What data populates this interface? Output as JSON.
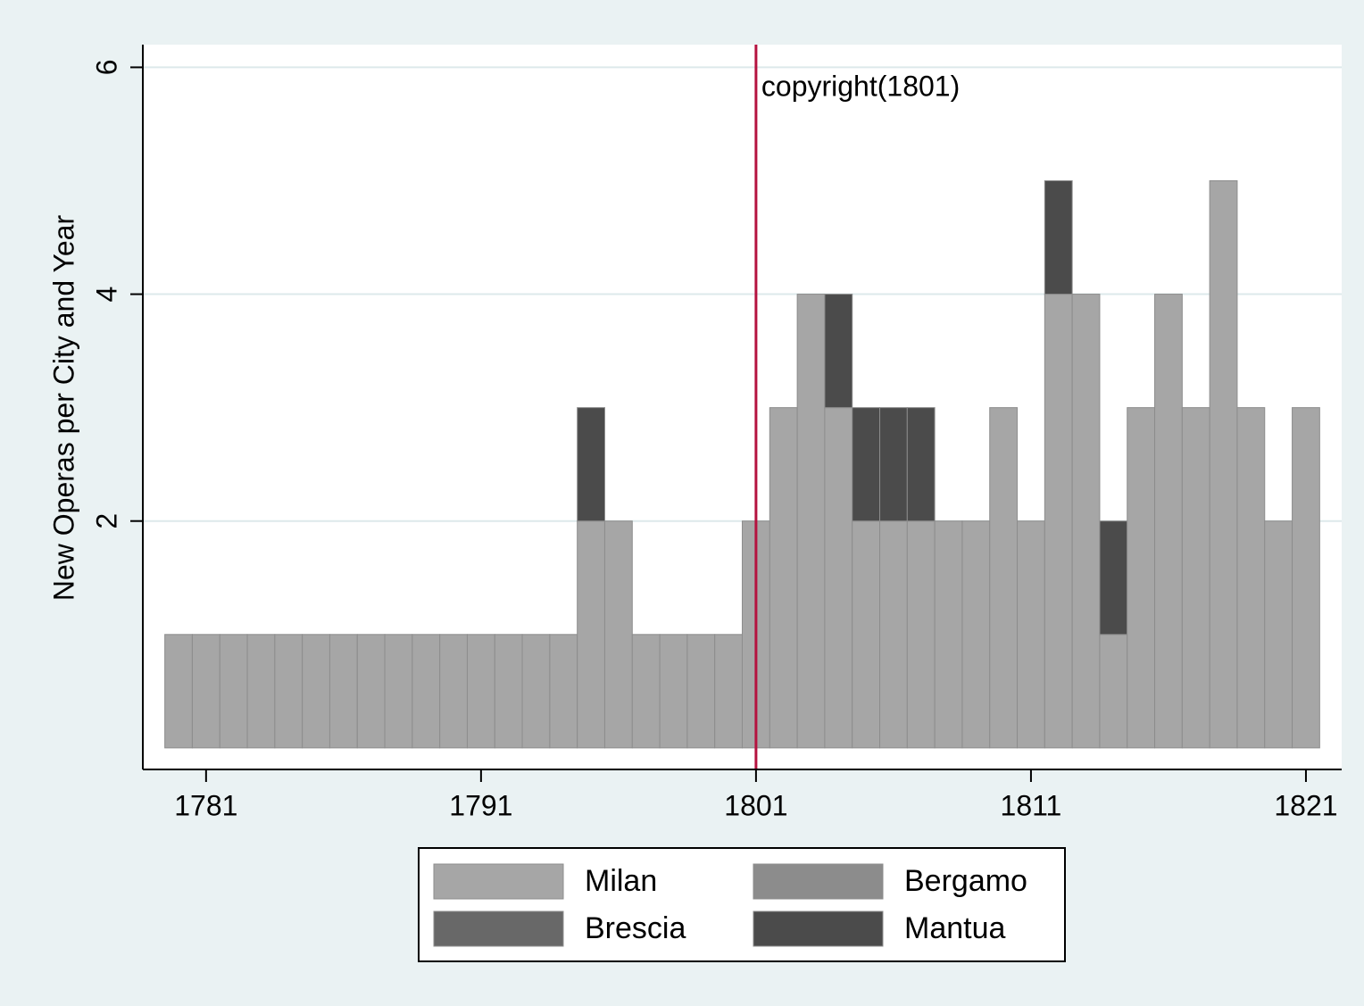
{
  "chart_data": {
    "type": "bar",
    "stacked": true,
    "y_label": "New Operas per City and Year",
    "x": [
      1780,
      1781,
      1782,
      1783,
      1784,
      1785,
      1786,
      1787,
      1788,
      1789,
      1790,
      1791,
      1792,
      1793,
      1794,
      1795,
      1796,
      1797,
      1798,
      1799,
      1800,
      1801,
      1802,
      1803,
      1804,
      1805,
      1806,
      1807,
      1808,
      1809,
      1810,
      1811,
      1812,
      1813,
      1814,
      1815,
      1816,
      1817,
      1818,
      1819,
      1820,
      1821
    ],
    "series": [
      {
        "name": "Milan",
        "color": "#a6a6a6",
        "values": [
          1,
          1,
          1,
          1,
          1,
          1,
          1,
          1,
          1,
          1,
          1,
          1,
          1,
          1,
          1,
          2,
          2,
          1,
          1,
          1,
          1,
          2,
          3,
          4,
          3,
          2,
          2,
          2,
          2,
          2,
          3,
          2,
          4,
          4,
          1,
          3,
          4,
          3,
          5,
          3,
          2,
          3
        ]
      },
      {
        "name": "Bergamo",
        "color": "#8c8c8c",
        "values": [
          0,
          0,
          0,
          0,
          0,
          0,
          0,
          0,
          0,
          0,
          0,
          0,
          0,
          0,
          0,
          0,
          0,
          0,
          0,
          0,
          0,
          0,
          0,
          0,
          0,
          0,
          0,
          0,
          0,
          0,
          0,
          0,
          0,
          0,
          0,
          0,
          0,
          0,
          0,
          0,
          0,
          0
        ]
      },
      {
        "name": "Brescia",
        "color": "#686868",
        "values": [
          0,
          0,
          0,
          0,
          0,
          0,
          0,
          0,
          0,
          0,
          0,
          0,
          0,
          0,
          0,
          0,
          0,
          0,
          0,
          0,
          0,
          0,
          0,
          0,
          0,
          0,
          0,
          0,
          0,
          0,
          0,
          0,
          0,
          0,
          0,
          0,
          0,
          0,
          0,
          0,
          0,
          0
        ]
      },
      {
        "name": "Mantua",
        "color": "#4b4b4b",
        "values": [
          0,
          0,
          0,
          0,
          0,
          0,
          0,
          0,
          0,
          0,
          0,
          0,
          0,
          0,
          0,
          1,
          0,
          0,
          0,
          0,
          0,
          0,
          0,
          0,
          1,
          1,
          1,
          1,
          0,
          0,
          0,
          0,
          1,
          0,
          1,
          0,
          0,
          0,
          0,
          0,
          0,
          0
        ]
      }
    ],
    "xlim": [
      1778.7,
      1822.3
    ],
    "xticks": [
      1781,
      1791,
      1801,
      1811,
      1821
    ],
    "ylim": [
      -0.19,
      6.2
    ],
    "yticks": [
      2,
      4,
      6
    ],
    "grid": true,
    "xline": {
      "value": 1801,
      "label": "copyright(1801)",
      "color": "#b5123f"
    },
    "legend": "bottom"
  }
}
